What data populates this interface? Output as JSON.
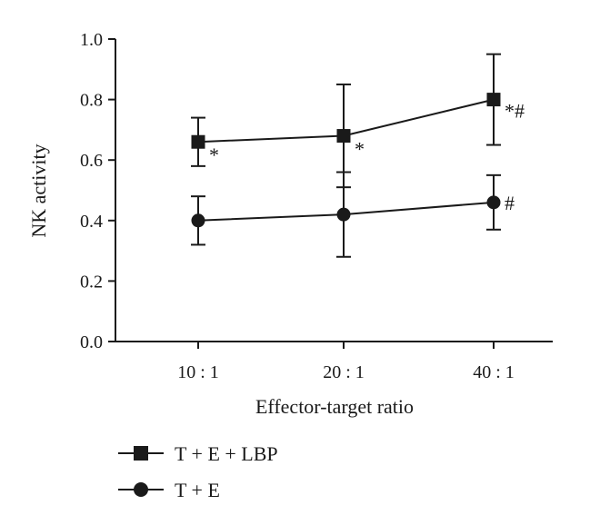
{
  "chart_data": {
    "type": "line",
    "xlabel": "Effector-target ratio",
    "ylabel": "NK activity",
    "categories": [
      "10 : 1",
      "20 : 1",
      "40 : 1"
    ],
    "ylim": [
      0.0,
      1.0
    ],
    "yticks": [
      "0.0",
      "0.2",
      "0.4",
      "0.6",
      "0.8",
      "1.0"
    ],
    "grid": false,
    "legend_position": "bottom-left",
    "series": [
      {
        "name": "T + E + LBP",
        "marker": "square",
        "values": [
          0.66,
          0.68,
          0.8
        ],
        "err_low": [
          0.58,
          0.51,
          0.65
        ],
        "err_high": [
          0.74,
          0.85,
          0.95
        ],
        "annotations": [
          "*",
          "*",
          "*#"
        ]
      },
      {
        "name": "T + E",
        "marker": "circle",
        "values": [
          0.4,
          0.42,
          0.46
        ],
        "err_low": [
          0.32,
          0.28,
          0.37
        ],
        "err_high": [
          0.48,
          0.56,
          0.55
        ],
        "annotations": [
          "",
          "",
          "#"
        ]
      }
    ]
  }
}
